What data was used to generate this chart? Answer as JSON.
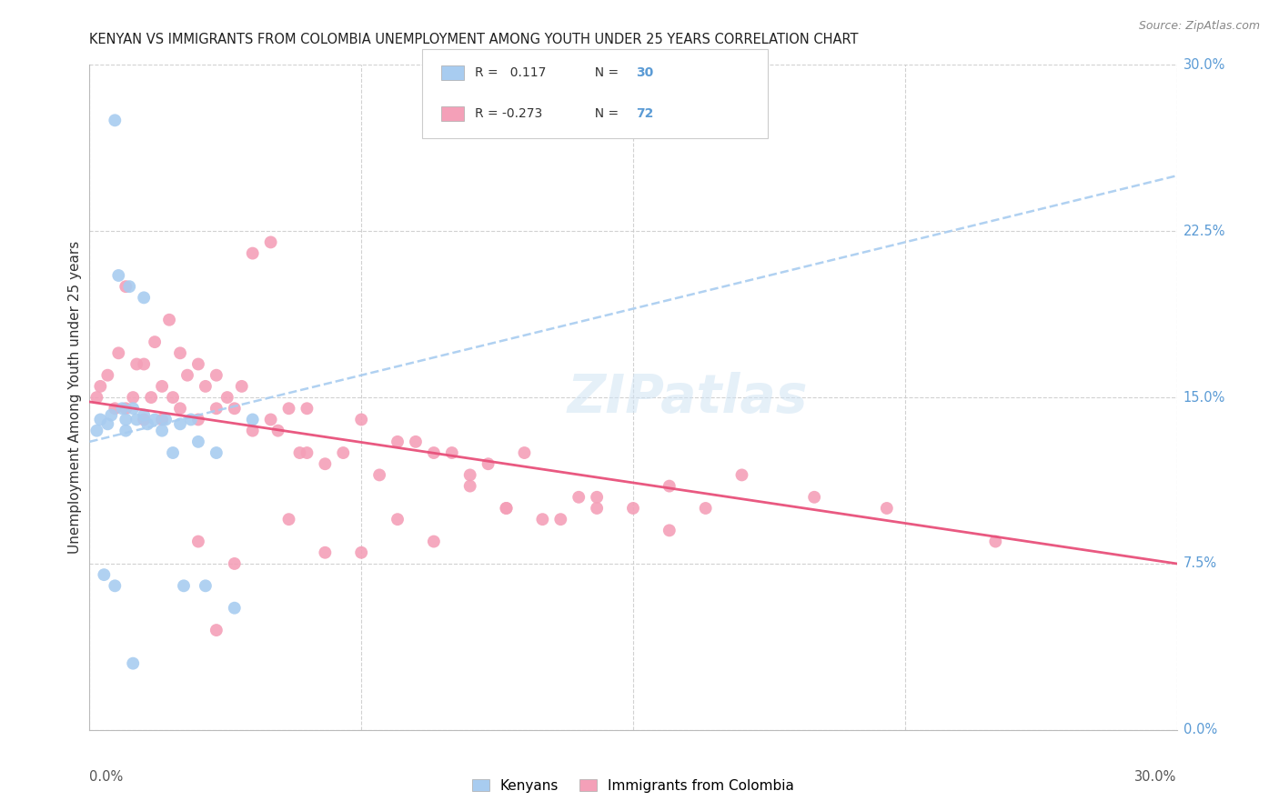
{
  "title": "KENYAN VS IMMIGRANTS FROM COLOMBIA UNEMPLOYMENT AMONG YOUTH UNDER 25 YEARS CORRELATION CHART",
  "source": "Source: ZipAtlas.com",
  "ylabel": "Unemployment Among Youth under 25 years",
  "color_blue": "#A8CCF0",
  "color_pink": "#F4A0B8",
  "color_trendline_blue": "#A8CCF0",
  "color_trendline_pink": "#E8507A",
  "xlim": [
    0,
    30
  ],
  "ylim": [
    0,
    30
  ],
  "kenyan_x": [
    0.2,
    0.3,
    0.5,
    0.6,
    0.7,
    0.8,
    0.9,
    1.0,
    1.0,
    1.1,
    1.2,
    1.3,
    1.5,
    1.5,
    1.6,
    1.8,
    2.0,
    2.1,
    2.3,
    2.5,
    2.6,
    2.8,
    3.0,
    3.2,
    3.5,
    4.0,
    4.5,
    0.4,
    0.7,
    1.2
  ],
  "kenyan_y": [
    13.5,
    14.0,
    13.8,
    14.2,
    27.5,
    20.5,
    14.5,
    14.0,
    13.5,
    20.0,
    14.5,
    14.0,
    19.5,
    14.2,
    13.8,
    14.0,
    13.5,
    14.0,
    12.5,
    13.8,
    6.5,
    14.0,
    13.0,
    6.5,
    12.5,
    5.5,
    14.0,
    7.0,
    6.5,
    3.0
  ],
  "colombia_x": [
    0.2,
    0.3,
    0.5,
    0.7,
    0.8,
    1.0,
    1.0,
    1.2,
    1.3,
    1.5,
    1.5,
    1.7,
    1.8,
    2.0,
    2.0,
    2.2,
    2.3,
    2.5,
    2.5,
    2.7,
    3.0,
    3.0,
    3.2,
    3.5,
    3.5,
    3.8,
    4.0,
    4.2,
    4.5,
    4.5,
    5.0,
    5.0,
    5.2,
    5.5,
    5.8,
    6.0,
    6.0,
    6.5,
    7.0,
    7.5,
    8.0,
    8.5,
    9.0,
    9.5,
    10.0,
    10.5,
    11.0,
    11.5,
    12.0,
    13.0,
    13.5,
    14.0,
    15.0,
    16.0,
    17.0,
    18.0,
    20.0,
    22.0,
    25.0,
    3.0,
    3.5,
    4.0,
    5.5,
    6.5,
    7.5,
    8.5,
    9.5,
    10.5,
    11.5,
    12.5,
    14.0,
    16.0
  ],
  "colombia_y": [
    15.0,
    15.5,
    16.0,
    14.5,
    17.0,
    14.5,
    20.0,
    15.0,
    16.5,
    14.0,
    16.5,
    15.0,
    17.5,
    14.0,
    15.5,
    18.5,
    15.0,
    14.5,
    17.0,
    16.0,
    14.0,
    16.5,
    15.5,
    14.5,
    16.0,
    15.0,
    14.5,
    15.5,
    21.5,
    13.5,
    14.0,
    22.0,
    13.5,
    14.5,
    12.5,
    14.5,
    12.5,
    12.0,
    12.5,
    14.0,
    11.5,
    13.0,
    13.0,
    12.5,
    12.5,
    11.5,
    12.0,
    10.0,
    12.5,
    9.5,
    10.5,
    10.5,
    10.0,
    11.0,
    10.0,
    11.5,
    10.5,
    10.0,
    8.5,
    8.5,
    4.5,
    7.5,
    9.5,
    8.0,
    8.0,
    9.5,
    8.5,
    11.0,
    10.0,
    9.5,
    10.0,
    9.0
  ]
}
